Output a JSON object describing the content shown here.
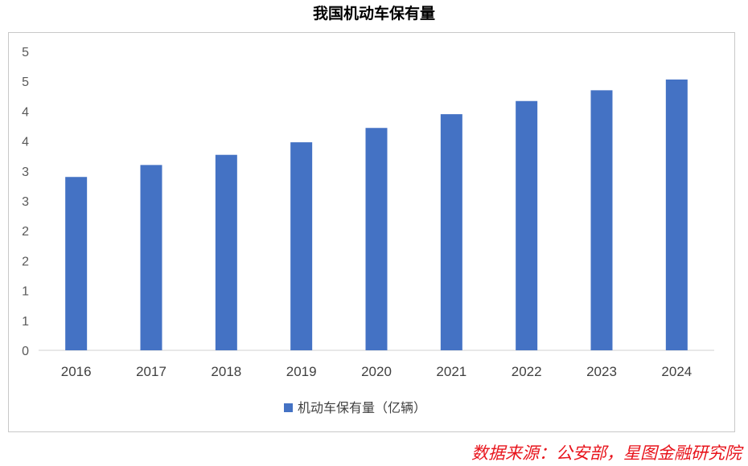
{
  "chart_data": {
    "type": "bar",
    "title": "我国机动车保有量",
    "categories": [
      "2016",
      "2017",
      "2018",
      "2019",
      "2020",
      "2021",
      "2022",
      "2023",
      "2024"
    ],
    "series": [
      {
        "name": "机动车保有量（亿辆）",
        "values": [
          2.9,
          3.1,
          3.27,
          3.48,
          3.72,
          3.95,
          4.17,
          4.35,
          4.53
        ]
      }
    ],
    "y_tick_labels": [
      "0",
      "1",
      "1",
      "2",
      "2",
      "3",
      "3",
      "4",
      "4",
      "5",
      "5"
    ],
    "ylim": [
      0,
      5
    ],
    "grid": false,
    "legend_position": "bottom",
    "bar_color": "#4472c4"
  },
  "source": "数据来源：公安部，星图金融研究院"
}
